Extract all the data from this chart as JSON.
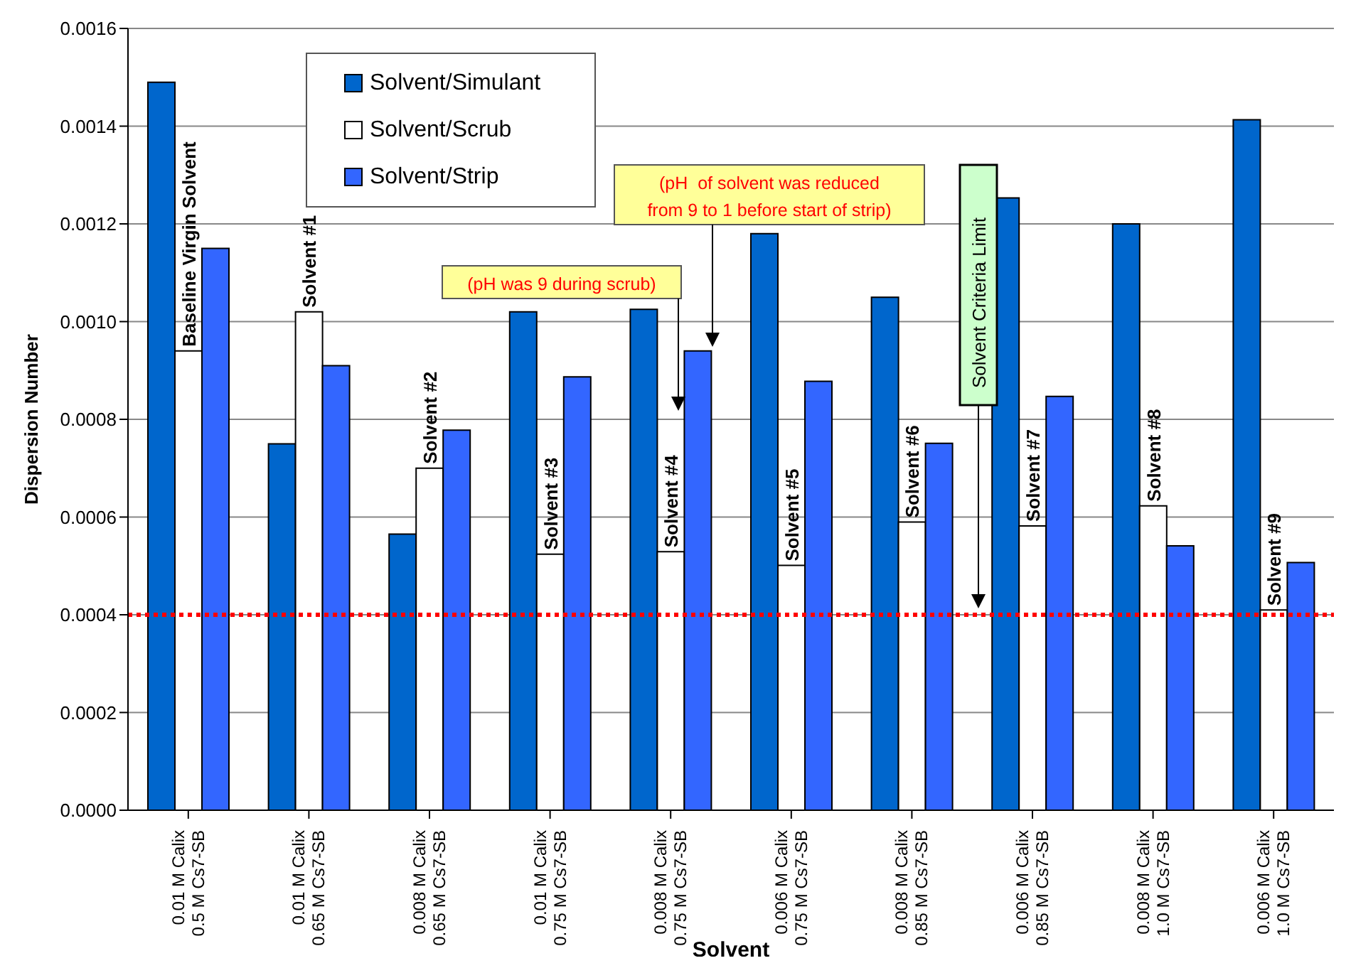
{
  "chart_data": {
    "type": "bar",
    "xlabel": "Solvent",
    "ylabel": "Dispersion Number",
    "categories": [
      "0.01 M Calix\n0.5 M Cs7-SB",
      "0.01 M Calix\n0.65 M Cs7-SB",
      "0.008 M Calix\n0.65 M Cs7-SB",
      "0.01 M Calix\n0.75 M Cs7-SB",
      "0.008 M Calix\n0.75 M Cs7-SB",
      "0.006 M Calix\n0.75 M Cs7-SB",
      "0.008 M Calix\n0.85 M Cs7-SB",
      "0.006 M Calix\n0.85 M Cs7-SB",
      "0.008 M Calix\n1.0 M Cs7-SB",
      "0.006 M Calix\n1.0 M Cs7-SB"
    ],
    "series": [
      {
        "name": "Solvent/Simulant",
        "color": "#0066cc",
        "values": [
          0.00149,
          0.00075,
          0.000565,
          0.00102,
          0.001025,
          0.00118,
          0.00105,
          0.001253,
          0.0012,
          0.001413
        ]
      },
      {
        "name": "Solvent/Scrub",
        "color": "#ffffff",
        "values": [
          0.00094,
          0.00102,
          0.0007,
          0.000524,
          0.000529,
          0.000501,
          0.00059,
          0.000582,
          0.000623,
          0.00041
        ]
      },
      {
        "name": "Solvent/Strip",
        "color": "#3366ff",
        "values": [
          0.00115,
          0.00091,
          0.000778,
          0.000887,
          0.00094,
          0.000878,
          0.000751,
          0.000847,
          0.000541,
          0.000507
        ]
      }
    ],
    "ylim": [
      0,
      0.0016
    ],
    "yticks": [
      {
        "value": 0,
        "label": "0.0000"
      },
      0.0002,
      0.0004,
      0.0006,
      0.0008,
      {
        "value": 0.001,
        "label": "0.0010"
      },
      0.0012,
      0.0014,
      0.0016
    ],
    "grid": "y",
    "legend": "top left",
    "ref_lines": [
      {
        "axis": "y",
        "value": 0.0004,
        "color": "#ff0000",
        "line_style": "dotted"
      }
    ],
    "annotations": [
      {
        "text": "Baseline Virgin Solvent",
        "x": "0.01 M Calix\n0.5 M Cs7-SB",
        "y": 0.00094
      },
      {
        "text": "Solvent #1",
        "x": "0.01 M Calix\n0.65 M Cs7-SB",
        "y": 0.00102
      },
      {
        "text": "Solvent #2",
        "x": "0.008 M Calix\n0.65 M Cs7-SB",
        "y": 0.0007
      },
      {
        "text": "Solvent #3",
        "x": "0.01 M Calix\n0.75 M Cs7-SB",
        "y": 0.000524
      },
      {
        "text": "Solvent #4",
        "x": "0.008 M Calix\n0.75 M Cs7-SB",
        "y": 0.000529
      },
      {
        "text": "Solvent #5",
        "x": "0.006 M Calix\n0.75 M Cs7-SB",
        "y": 0.000501
      },
      {
        "text": "Solvent #6",
        "x": "0.008 M Calix\n0.85 M Cs7-SB",
        "y": 0.00059
      },
      {
        "text": "Solvent #7",
        "x": "0.006 M Calix\n0.85 M Cs7-SB",
        "y": 0.000582
      },
      {
        "text": "Solvent #8",
        "x": "0.008 M Calix\n1.0 M Cs7-SB",
        "y": 0.000623
      },
      {
        "text": "Solvent #9",
        "x": "0.006 M Calix\n1.0 M Cs7-SB",
        "y": 0.00041
      },
      "(pH was 9 during scrub)",
      "(pH  of solvent was reduced\nfrom 9 to 1 before start of strip)",
      "Solvent Criteria Limit"
    ]
  }
}
